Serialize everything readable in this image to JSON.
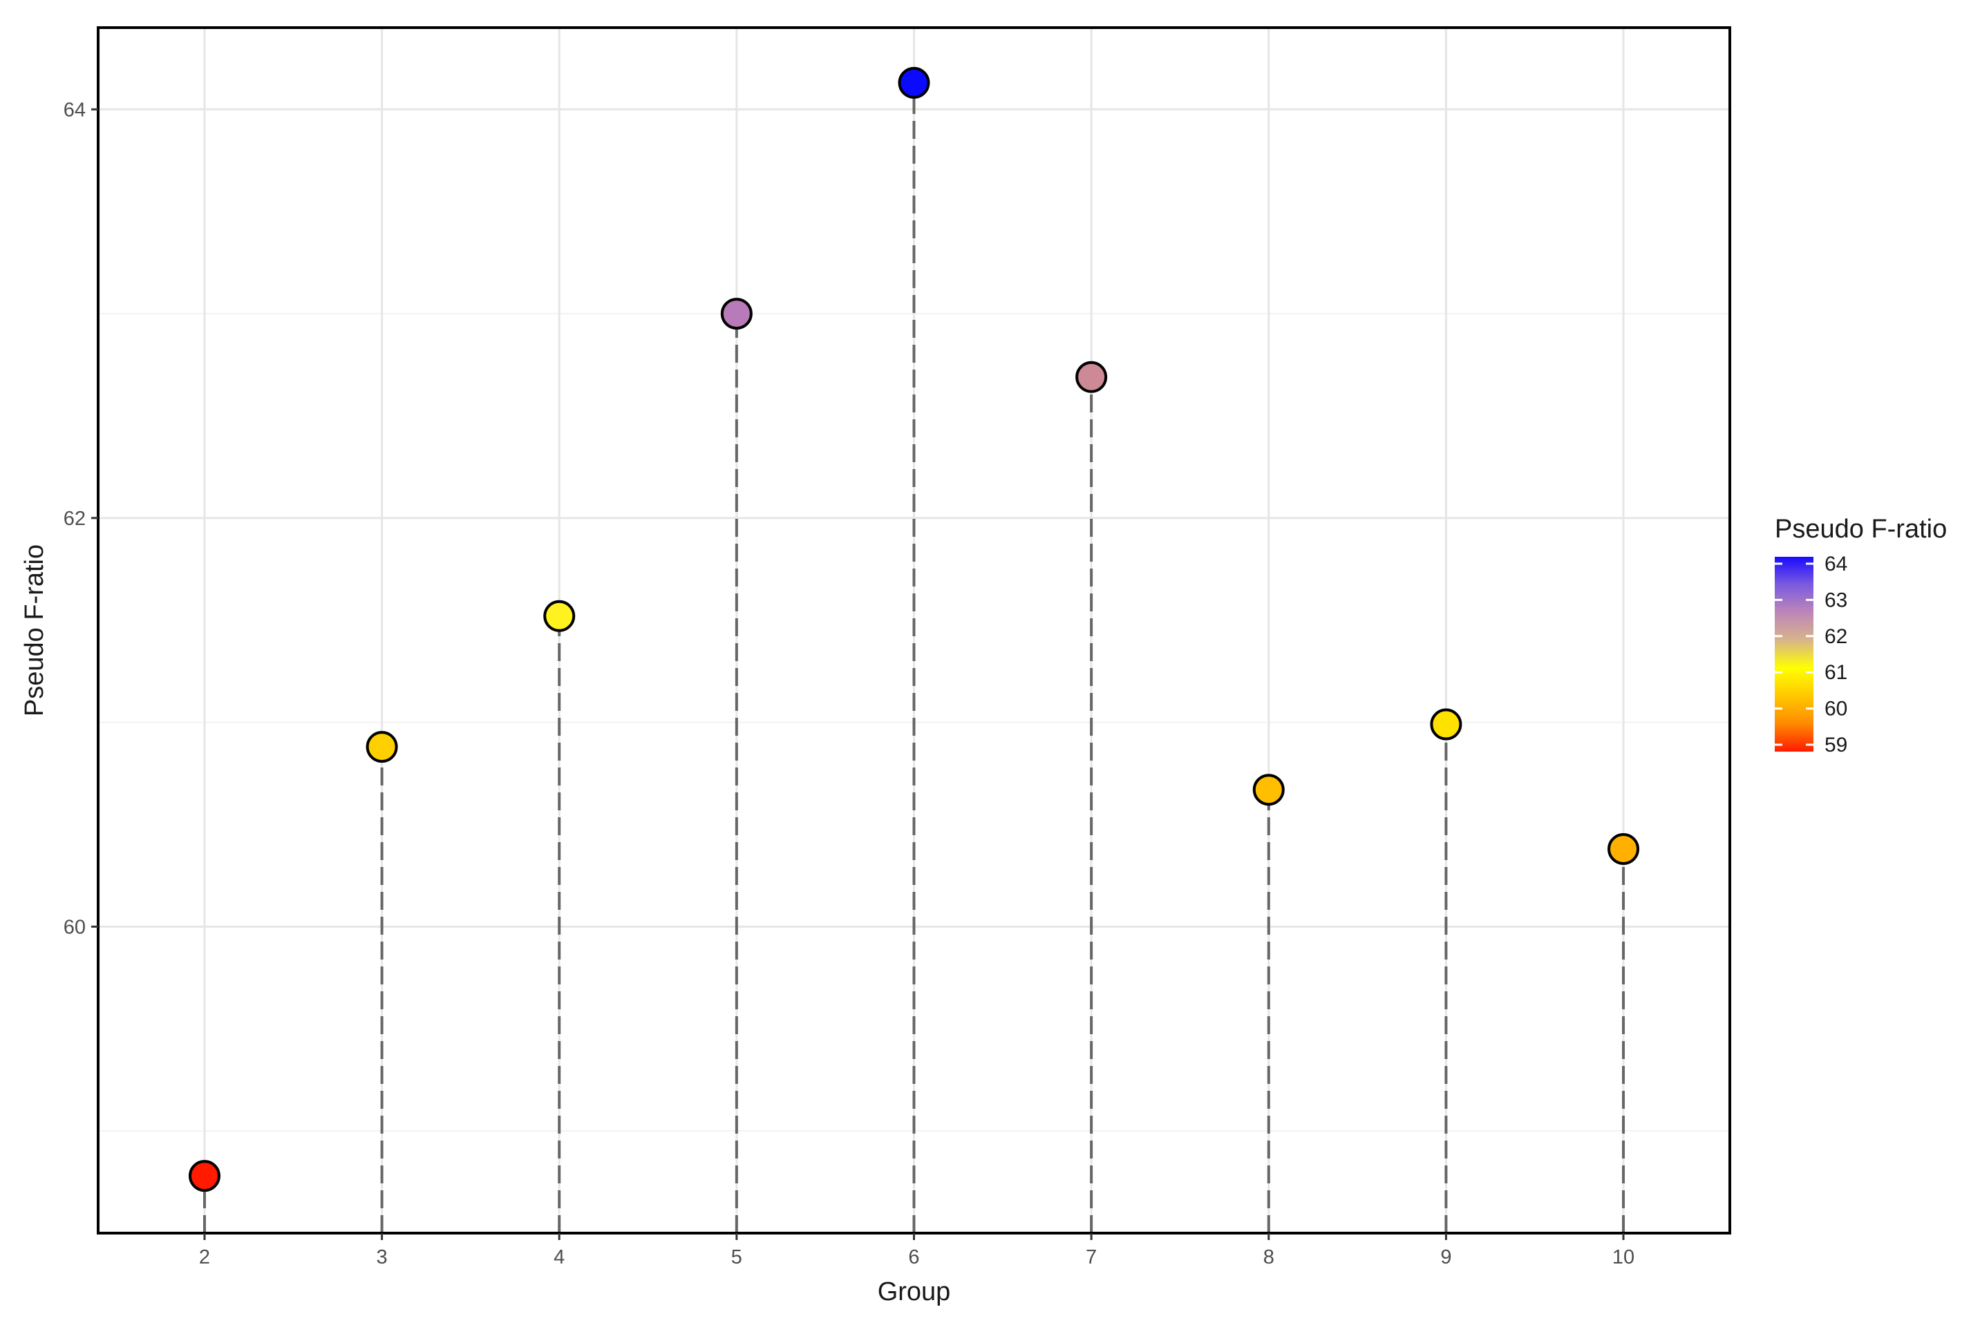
{
  "chart_data": {
    "type": "scatter",
    "style": "lollipop",
    "xlabel": "Group",
    "ylabel": "Pseudo F-ratio",
    "x": [
      2,
      3,
      4,
      5,
      6,
      7,
      8,
      9,
      10
    ],
    "y": [
      58.78,
      60.88,
      61.52,
      63.0,
      64.13,
      62.69,
      60.67,
      60.99,
      60.38
    ],
    "point_colors": [
      "#ff1a00",
      "#ffd000",
      "#fff21f",
      "#b87ab8",
      "#0a0aff",
      "#cd8a96",
      "#ffbf00",
      "#ffe100",
      "#ffb000"
    ],
    "xlim": [
      1.4,
      10.6
    ],
    "ylim": [
      58.5,
      64.4
    ],
    "x_ticks": [
      "2",
      "3",
      "4",
      "5",
      "6",
      "7",
      "8",
      "9",
      "10"
    ],
    "y_ticks": [
      "60",
      "62",
      "64"
    ],
    "grid": true,
    "legend": {
      "title": "Pseudo F-ratio",
      "placement": "right",
      "labels": [
        "64",
        "63",
        "62",
        "61",
        "60",
        "59"
      ],
      "colors": [
        "#1a0aff",
        "#7b5be0",
        "#bd86b8",
        "#d8b48a",
        "#ffff00",
        "#ffc800",
        "#ff8a00",
        "#ff1a00"
      ]
    }
  }
}
